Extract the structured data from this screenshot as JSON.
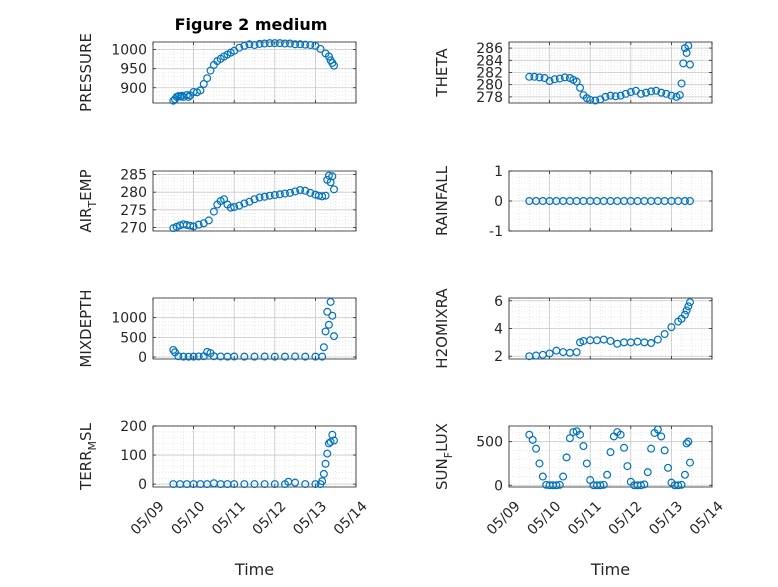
{
  "figure": {
    "title": "Figure 2 medium",
    "xlabel": "Time",
    "accent_color": "#0072BD",
    "date_ticks": [
      "05/09",
      "05/10",
      "05/11",
      "05/12",
      "05/13",
      "05/14"
    ]
  },
  "chart_data": [
    {
      "id": "pressure",
      "type": "scatter",
      "ylabel": "PRESSURE",
      "xlim": [
        "05/09",
        "05/14"
      ],
      "ylim": [
        860,
        1020
      ],
      "yticks": [
        900,
        950,
        1000
      ],
      "ytick_labels": [
        "900",
        "950",
        "1000"
      ],
      "grid": true,
      "x": [
        "05/09 12:00",
        "05/09 13:00",
        "05/09 14:00",
        "05/09 15:00",
        "05/09 16:00",
        "05/09 17:00",
        "05/09 18:00",
        "05/09 20:00",
        "05/09 21:00",
        "05/09 22:00",
        "05/10 00:00",
        "05/10 02:00",
        "05/10 04:00",
        "05/10 06:00",
        "05/10 08:00",
        "05/10 10:00",
        "05/10 12:00",
        "05/10 14:00",
        "05/10 16:00",
        "05/10 18:00",
        "05/10 20:00",
        "05/10 22:00",
        "05/11 00:00",
        "05/11 03:00",
        "05/11 06:00",
        "05/11 09:00",
        "05/11 12:00",
        "05/11 15:00",
        "05/11 18:00",
        "05/11 21:00",
        "05/12 00:00",
        "05/12 03:00",
        "05/12 06:00",
        "05/12 09:00",
        "05/12 12:00",
        "05/12 15:00",
        "05/12 18:00",
        "05/12 21:00",
        "05/13 00:00",
        "05/13 03:00",
        "05/13 06:00",
        "05/13 08:00",
        "05/13 09:00",
        "05/13 10:00",
        "05/13 11:00"
      ],
      "y": [
        866,
        870,
        876,
        878,
        877,
        879,
        876,
        881,
        876,
        880,
        889,
        888,
        893,
        910,
        925,
        945,
        960,
        970,
        976,
        982,
        987,
        992,
        997,
        1005,
        1010,
        1014,
        1012,
        1015,
        1016,
        1017,
        1017,
        1017,
        1016,
        1016,
        1014,
        1014,
        1013,
        1012,
        1010,
        1002,
        990,
        982,
        972,
        965,
        958
      ]
    },
    {
      "id": "theta",
      "type": "scatter",
      "ylabel": "THETA",
      "xlim": [
        "05/09",
        "05/14"
      ],
      "ylim": [
        277,
        287
      ],
      "yticks": [
        278,
        280,
        282,
        284,
        286
      ],
      "ytick_labels": [
        "278",
        "280",
        "282",
        "284",
        "286"
      ],
      "grid": true,
      "x": [
        "05/09 12:00",
        "05/09 15:00",
        "05/09 18:00",
        "05/09 21:00",
        "05/10 00:00",
        "05/10 03:00",
        "05/10 06:00",
        "05/10 09:00",
        "05/10 12:00",
        "05/10 14:00",
        "05/10 16:00",
        "05/10 18:00",
        "05/10 20:00",
        "05/10 22:00",
        "05/11 00:00",
        "05/11 03:00",
        "05/11 06:00",
        "05/11 09:00",
        "05/11 12:00",
        "05/11 15:00",
        "05/11 18:00",
        "05/11 21:00",
        "05/12 00:00",
        "05/12 03:00",
        "05/12 06:00",
        "05/12 09:00",
        "05/12 12:00",
        "05/12 15:00",
        "05/12 18:00",
        "05/12 21:00",
        "05/13 00:00",
        "05/13 03:00",
        "05/13 05:00",
        "05/13 06:00",
        "05/13 07:00",
        "05/13 08:00",
        "05/13 09:00",
        "05/13 10:00",
        "05/13 11:00"
      ],
      "y": [
        281.3,
        281.3,
        281.2,
        281.1,
        280.6,
        280.9,
        281.0,
        281.2,
        281.1,
        280.8,
        280.5,
        279.5,
        278.3,
        277.8,
        277.5,
        277.4,
        277.6,
        278.0,
        278.2,
        278.1,
        278.2,
        278.5,
        278.8,
        279.0,
        278.5,
        278.7,
        278.9,
        279.0,
        278.7,
        278.5,
        278.2,
        278.0,
        278.3,
        280.2,
        283.5,
        286.0,
        285.2,
        286.4,
        283.3
      ]
    },
    {
      "id": "air_temp",
      "type": "scatter",
      "ylabel": "AIR_TEMP",
      "ylabel_main": "AIR",
      "ylabel_sub": "T",
      "ylabel_rest": "EMP",
      "xlim": [
        "05/09",
        "05/14"
      ],
      "ylim": [
        269,
        286
      ],
      "yticks": [
        270,
        275,
        280,
        285
      ],
      "ytick_labels": [
        "270",
        "275",
        "280",
        "285"
      ],
      "grid": true,
      "x": [
        "05/09 12:00",
        "05/09 14:00",
        "05/09 16:00",
        "05/09 18:00",
        "05/09 20:00",
        "05/09 22:00",
        "05/10 00:00",
        "05/10 03:00",
        "05/10 06:00",
        "05/10 09:00",
        "05/10 12:00",
        "05/10 14:00",
        "05/10 16:00",
        "05/10 18:00",
        "05/10 20:00",
        "05/10 22:00",
        "05/11 00:00",
        "05/11 03:00",
        "05/11 06:00",
        "05/11 09:00",
        "05/11 12:00",
        "05/11 15:00",
        "05/11 18:00",
        "05/11 21:00",
        "05/12 00:00",
        "05/12 03:00",
        "05/12 06:00",
        "05/12 09:00",
        "05/12 12:00",
        "05/12 15:00",
        "05/12 18:00",
        "05/12 21:00",
        "05/13 00:00",
        "05/13 02:00",
        "05/13 04:00",
        "05/13 06:00",
        "05/13 07:00",
        "05/13 08:00",
        "05/13 09:00",
        "05/13 10:00",
        "05/13 11:00"
      ],
      "y": [
        269.8,
        270.2,
        270.6,
        270.9,
        270.7,
        270.5,
        270.3,
        270.8,
        271.2,
        272.0,
        274.5,
        276.5,
        277.5,
        278.0,
        276.5,
        275.6,
        275.8,
        276.2,
        276.8,
        277.3,
        278.0,
        278.5,
        278.7,
        279.0,
        279.2,
        279.4,
        279.6,
        279.8,
        280.2,
        280.6,
        280.4,
        279.8,
        279.3,
        279.0,
        278.8,
        279.0,
        283.5,
        284.7,
        282.8,
        284.5,
        280.8
      ]
    },
    {
      "id": "rainfall",
      "type": "scatter",
      "ylabel": "RAINFALL",
      "xlim": [
        "05/09",
        "05/14"
      ],
      "ylim": [
        -1,
        1
      ],
      "yticks": [
        -1,
        0,
        1
      ],
      "ytick_labels": [
        "-1",
        "0",
        "1"
      ],
      "grid": true,
      "x": [
        "05/09 12:00",
        "05/09 16:00",
        "05/09 20:00",
        "05/10 00:00",
        "05/10 04:00",
        "05/10 08:00",
        "05/10 12:00",
        "05/10 16:00",
        "05/10 20:00",
        "05/11 00:00",
        "05/11 04:00",
        "05/11 08:00",
        "05/11 12:00",
        "05/11 16:00",
        "05/11 20:00",
        "05/12 00:00",
        "05/12 04:00",
        "05/12 08:00",
        "05/12 12:00",
        "05/12 16:00",
        "05/12 20:00",
        "05/13 00:00",
        "05/13 04:00",
        "05/13 08:00",
        "05/13 11:00"
      ],
      "y": [
        0,
        0,
        0,
        0,
        0,
        0,
        0,
        0,
        0,
        0,
        0,
        0,
        0,
        0,
        0,
        0,
        0,
        0,
        0,
        0,
        0,
        0,
        0,
        0,
        0
      ]
    },
    {
      "id": "mixdepth",
      "type": "scatter",
      "ylabel": "MIXDEPTH",
      "xlim": [
        "05/09",
        "05/14"
      ],
      "ylim": [
        -50,
        1500
      ],
      "yticks": [
        0,
        500,
        1000
      ],
      "ytick_labels": [
        "0",
        "500",
        "1000"
      ],
      "grid": true,
      "x": [
        "05/09 12:00",
        "05/09 13:00",
        "05/09 15:00",
        "05/09 18:00",
        "05/09 21:00",
        "05/10 00:00",
        "05/10 03:00",
        "05/10 06:00",
        "05/10 08:00",
        "05/10 10:00",
        "05/10 12:00",
        "05/10 16:00",
        "05/10 20:00",
        "05/11 00:00",
        "05/11 06:00",
        "05/11 12:00",
        "05/11 18:00",
        "05/12 00:00",
        "05/12 06:00",
        "05/12 12:00",
        "05/12 18:00",
        "05/13 00:00",
        "05/13 04:00",
        "05/13 05:00",
        "05/13 06:00",
        "05/13 07:00",
        "05/13 08:00",
        "05/13 09:00",
        "05/13 10:00",
        "05/13 11:00"
      ],
      "y": [
        180,
        120,
        20,
        10,
        8,
        10,
        15,
        20,
        130,
        100,
        20,
        15,
        10,
        12,
        10,
        10,
        12,
        10,
        10,
        15,
        10,
        10,
        10,
        250,
        650,
        1150,
        820,
        1400,
        1050,
        530
      ]
    },
    {
      "id": "h2omixra",
      "type": "scatter",
      "ylabel": "H2OMIXRA",
      "xlim": [
        "05/09",
        "05/14"
      ],
      "ylim": [
        1.8,
        6.2
      ],
      "yticks": [
        2,
        4,
        6
      ],
      "ytick_labels": [
        "2",
        "4",
        "6"
      ],
      "grid": true,
      "x": [
        "05/09 12:00",
        "05/09 16:00",
        "05/09 20:00",
        "05/10 00:00",
        "05/10 04:00",
        "05/10 08:00",
        "05/10 12:00",
        "05/10 16:00",
        "05/10 18:00",
        "05/10 20:00",
        "05/11 00:00",
        "05/11 04:00",
        "05/11 08:00",
        "05/11 12:00",
        "05/11 16:00",
        "05/11 20:00",
        "05/12 00:00",
        "05/12 04:00",
        "05/12 08:00",
        "05/12 12:00",
        "05/12 16:00",
        "05/12 20:00",
        "05/13 00:00",
        "05/13 04:00",
        "05/13 06:00",
        "05/13 08:00",
        "05/13 09:00",
        "05/13 10:00",
        "05/13 11:00"
      ],
      "y": [
        2.0,
        2.05,
        2.1,
        2.2,
        2.4,
        2.3,
        2.25,
        2.3,
        3.0,
        3.1,
        3.15,
        3.15,
        3.2,
        3.1,
        2.9,
        3.0,
        3.0,
        3.05,
        3.0,
        2.95,
        3.2,
        3.6,
        4.1,
        4.5,
        4.7,
        5.0,
        5.3,
        5.6,
        5.9
      ]
    },
    {
      "id": "terr_msl",
      "type": "scatter",
      "ylabel": "TERR_MSL",
      "ylabel_main": "TERR",
      "ylabel_sub": "M",
      "ylabel_rest": "SL",
      "xlim": [
        "05/09",
        "05/14"
      ],
      "ylim": [
        -10,
        200
      ],
      "yticks": [
        0,
        100,
        200
      ],
      "ytick_labels": [
        "0",
        "100",
        "200"
      ],
      "grid": true,
      "x": [
        "05/09 12:00",
        "05/09 16:00",
        "05/09 20:00",
        "05/10 00:00",
        "05/10 04:00",
        "05/10 08:00",
        "05/10 12:00",
        "05/10 16:00",
        "05/10 20:00",
        "05/11 00:00",
        "05/11 06:00",
        "05/11 12:00",
        "05/11 18:00",
        "05/12 00:00",
        "05/12 06:00",
        "05/12 08:00",
        "05/12 12:00",
        "05/12 18:00",
        "05/13 00:00",
        "05/13 03:00",
        "05/13 04:00",
        "05/13 05:00",
        "05/13 06:00",
        "05/13 07:00",
        "05/13 08:00",
        "05/13 09:00",
        "05/13 10:00",
        "05/13 11:00"
      ],
      "y": [
        0,
        0,
        0,
        0,
        0,
        0,
        3,
        0,
        0,
        0,
        0,
        0,
        0,
        0,
        0,
        8,
        5,
        0,
        0,
        0,
        10,
        35,
        70,
        105,
        140,
        145,
        170,
        150
      ]
    },
    {
      "id": "sun_flux",
      "type": "scatter",
      "ylabel": "SUN_FLUX",
      "ylabel_main": "SUN",
      "ylabel_sub": "F",
      "ylabel_rest": "LUX",
      "xlim": [
        "05/09",
        "05/14"
      ],
      "ylim": [
        -20,
        680
      ],
      "yticks": [
        0,
        500
      ],
      "ytick_labels": [
        "0",
        "500"
      ],
      "grid": true,
      "x": [
        "05/09 12:00",
        "05/09 14:00",
        "05/09 16:00",
        "05/09 18:00",
        "05/09 20:00",
        "05/09 22:00",
        "05/10 00:00",
        "05/10 02:00",
        "05/10 04:00",
        "05/10 06:00",
        "05/10 08:00",
        "05/10 10:00",
        "05/10 12:00",
        "05/10 14:00",
        "05/10 16:00",
        "05/10 18:00",
        "05/10 20:00",
        "05/10 22:00",
        "05/11 00:00",
        "05/11 02:00",
        "05/11 04:00",
        "05/11 06:00",
        "05/11 08:00",
        "05/11 10:00",
        "05/11 12:00",
        "05/11 14:00",
        "05/11 16:00",
        "05/11 18:00",
        "05/11 20:00",
        "05/11 22:00",
        "05/12 00:00",
        "05/12 02:00",
        "05/12 04:00",
        "05/12 06:00",
        "05/12 08:00",
        "05/12 10:00",
        "05/12 12:00",
        "05/12 14:00",
        "05/12 16:00",
        "05/12 18:00",
        "05/12 20:00",
        "05/12 22:00",
        "05/13 00:00",
        "05/13 02:00",
        "05/13 04:00",
        "05/13 06:00",
        "05/13 08:00",
        "05/13 09:00",
        "05/13 10:00",
        "05/13 11:00"
      ],
      "y": [
        580,
        520,
        420,
        250,
        100,
        5,
        0,
        0,
        0,
        5,
        100,
        320,
        540,
        610,
        620,
        580,
        450,
        250,
        60,
        0,
        0,
        0,
        5,
        120,
        380,
        560,
        610,
        580,
        430,
        220,
        40,
        0,
        0,
        0,
        10,
        150,
        420,
        600,
        640,
        560,
        400,
        200,
        30,
        0,
        0,
        5,
        120,
        480,
        500,
        260
      ]
    }
  ]
}
